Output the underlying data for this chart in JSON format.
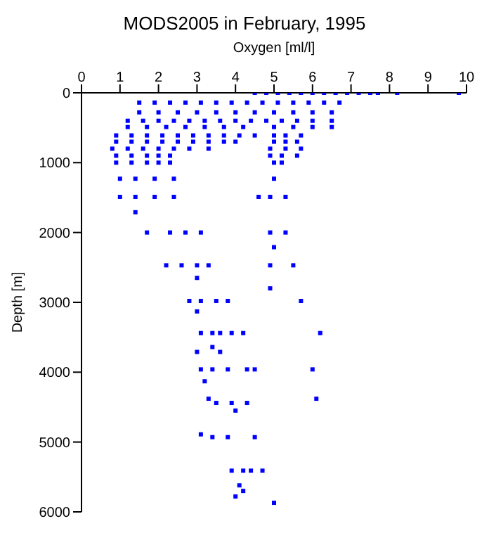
{
  "chart_data": {
    "type": "scatter",
    "title": "MODS2005 in February, 1995",
    "xlabel": "Oxygen [ml/l]",
    "ylabel": "Depth [m]",
    "xlim": [
      0,
      10
    ],
    "xticks": [
      0,
      1,
      2,
      3,
      4,
      5,
      6,
      7,
      8,
      9,
      10
    ],
    "ylim": [
      6000,
      0
    ],
    "yticks": [
      0,
      1000,
      2000,
      3000,
      4000,
      5000,
      6000
    ],
    "grid": false,
    "legend": false,
    "marker": "square",
    "series": [
      {
        "color": "#0000ff",
        "x": [
          4.5,
          4.8,
          5.1,
          5.4,
          5.7,
          6.0,
          6.3,
          6.6,
          6.9,
          7.2,
          7.5,
          7.7,
          8.2,
          9.8,
          1.5,
          1.9,
          2.3,
          2.7,
          3.1,
          3.5,
          3.9,
          4.3,
          4.7,
          5.1,
          5.5,
          5.9,
          6.3,
          6.7,
          1.5,
          2.0,
          2.5,
          3.0,
          3.5,
          4.0,
          4.5,
          5.0,
          5.5,
          6.0,
          6.5,
          1.2,
          1.6,
          2.0,
          2.4,
          2.8,
          3.2,
          3.6,
          4.0,
          4.4,
          4.8,
          5.2,
          5.6,
          6.0,
          6.5,
          1.2,
          1.7,
          2.2,
          2.7,
          3.2,
          3.7,
          4.2,
          5.0,
          5.5,
          6.0,
          6.5,
          0.9,
          1.3,
          1.7,
          2.1,
          2.5,
          2.9,
          3.3,
          3.7,
          4.1,
          4.5,
          5.0,
          5.3,
          5.7,
          0.9,
          1.3,
          1.7,
          2.1,
          2.5,
          2.9,
          3.3,
          3.7,
          4.0,
          5.0,
          5.3,
          5.6,
          0.8,
          1.2,
          1.6,
          2.0,
          2.4,
          2.8,
          3.3,
          4.9,
          5.3,
          5.7,
          0.9,
          1.3,
          1.7,
          2.0,
          2.3,
          4.9,
          5.2,
          5.6,
          0.9,
          1.3,
          1.7,
          2.0,
          2.3,
          5.0,
          5.2,
          1.0,
          1.4,
          1.9,
          2.4,
          5.0,
          1.0,
          1.4,
          1.9,
          2.4,
          4.6,
          4.9,
          5.3,
          1.4,
          1.7,
          2.3,
          2.7,
          3.1,
          4.9,
          5.3,
          5.0,
          2.2,
          2.6,
          3.0,
          3.3,
          4.9,
          5.5,
          3.0,
          4.9,
          2.8,
          3.1,
          3.5,
          3.8,
          5.7,
          3.0,
          3.1,
          3.4,
          3.6,
          3.9,
          4.2,
          6.2,
          3.4,
          3.0,
          3.6,
          3.1,
          3.4,
          3.8,
          4.3,
          4.5,
          6.0,
          3.2,
          3.3,
          6.1,
          3.5,
          3.9,
          4.3,
          4.0,
          3.1,
          3.4,
          3.8,
          4.5,
          3.9,
          4.2,
          4.4,
          4.7,
          4.1,
          4.2,
          4.0,
          5.0
        ],
        "values": [
          0,
          0,
          0,
          0,
          0,
          0,
          0,
          0,
          0,
          0,
          0,
          0,
          0,
          0,
          140,
          140,
          140,
          140,
          140,
          140,
          140,
          140,
          140,
          140,
          140,
          140,
          140,
          140,
          280,
          280,
          280,
          280,
          280,
          280,
          280,
          280,
          280,
          280,
          280,
          400,
          400,
          400,
          400,
          400,
          400,
          400,
          400,
          400,
          400,
          400,
          400,
          400,
          400,
          490,
          490,
          490,
          490,
          490,
          490,
          490,
          490,
          490,
          490,
          490,
          610,
          610,
          610,
          610,
          610,
          610,
          610,
          610,
          610,
          610,
          610,
          610,
          610,
          700,
          700,
          700,
          700,
          700,
          700,
          700,
          700,
          700,
          700,
          700,
          700,
          800,
          800,
          800,
          800,
          800,
          800,
          800,
          800,
          800,
          800,
          900,
          900,
          900,
          900,
          900,
          900,
          900,
          900,
          1000,
          1000,
          1000,
          1000,
          1000,
          1000,
          1000,
          1230,
          1230,
          1230,
          1230,
          1230,
          1490,
          1490,
          1490,
          1490,
          1490,
          1490,
          1490,
          1710,
          2000,
          2000,
          2000,
          2000,
          2000,
          2000,
          2210,
          2470,
          2470,
          2470,
          2470,
          2470,
          2470,
          2650,
          2800,
          2980,
          2980,
          2980,
          2980,
          2980,
          3130,
          3440,
          3440,
          3440,
          3440,
          3440,
          3440,
          3640,
          3710,
          3710,
          3960,
          3960,
          3960,
          3960,
          3960,
          3960,
          4130,
          4380,
          4380,
          4440,
          4440,
          4440,
          4550,
          4890,
          4930,
          4930,
          4930,
          5410,
          5410,
          5410,
          5410,
          5620,
          5700,
          5780,
          5870
        ]
      }
    ]
  }
}
